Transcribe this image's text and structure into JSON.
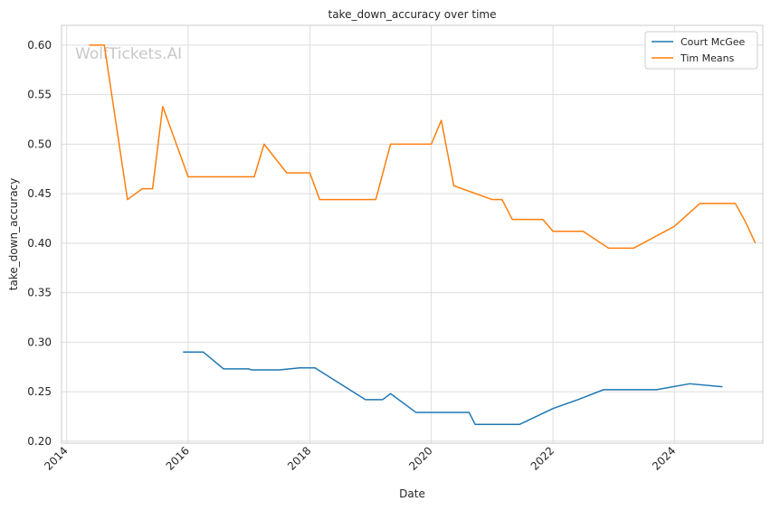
{
  "chart_data": {
    "type": "line",
    "title": "take_down_accuracy over time",
    "xlabel": "Date",
    "ylabel": "take_down_accuracy",
    "xlim": [
      "2013-12-01",
      "2025-06-15"
    ],
    "ylim": [
      0.198,
      0.62
    ],
    "x_ticks": [
      {
        "date": "2014-01-01",
        "label": "2014"
      },
      {
        "date": "2016-01-01",
        "label": "2016"
      },
      {
        "date": "2018-01-01",
        "label": "2018"
      },
      {
        "date": "2020-01-01",
        "label": "2020"
      },
      {
        "date": "2022-01-01",
        "label": "2022"
      },
      {
        "date": "2024-01-01",
        "label": "2024"
      }
    ],
    "y_ticks": [
      {
        "value": 0.2,
        "label": "0.20"
      },
      {
        "value": 0.25,
        "label": "0.25"
      },
      {
        "value": 0.3,
        "label": "0.30"
      },
      {
        "value": 0.35,
        "label": "0.35"
      },
      {
        "value": 0.4,
        "label": "0.40"
      },
      {
        "value": 0.45,
        "label": "0.45"
      },
      {
        "value": 0.5,
        "label": "0.50"
      },
      {
        "value": 0.55,
        "label": "0.55"
      },
      {
        "value": 0.6,
        "label": "0.60"
      }
    ],
    "grid": true,
    "legend_position": "top-right",
    "watermark": "WolfTickets.AI",
    "series": [
      {
        "name": "Court McGee",
        "color": "#1f77b4",
        "points": [
          [
            "2015-12-01",
            0.29
          ],
          [
            "2016-04-01",
            0.29
          ],
          [
            "2016-08-01",
            0.273
          ],
          [
            "2017-01-01",
            0.273
          ],
          [
            "2017-01-15",
            0.272
          ],
          [
            "2017-07-01",
            0.272
          ],
          [
            "2017-11-01",
            0.274
          ],
          [
            "2018-02-01",
            0.274
          ],
          [
            "2018-12-01",
            0.242
          ],
          [
            "2019-03-15",
            0.242
          ],
          [
            "2019-05-01",
            0.248
          ],
          [
            "2019-10-01",
            0.229
          ],
          [
            "2020-08-15",
            0.229
          ],
          [
            "2020-09-20",
            0.217
          ],
          [
            "2021-06-15",
            0.217
          ],
          [
            "2022-01-01",
            0.233
          ],
          [
            "2022-06-01",
            0.242
          ],
          [
            "2022-11-01",
            0.252
          ],
          [
            "2023-09-15",
            0.252
          ],
          [
            "2024-04-01",
            0.258
          ],
          [
            "2024-10-15",
            0.255
          ]
        ]
      },
      {
        "name": "Tim Means",
        "color": "#ff7f0e",
        "points": [
          [
            "2014-05-15",
            0.6
          ],
          [
            "2014-08-15",
            0.6
          ],
          [
            "2015-01-01",
            0.444
          ],
          [
            "2015-04-01",
            0.455
          ],
          [
            "2015-06-01",
            0.455
          ],
          [
            "2015-08-01",
            0.538
          ],
          [
            "2016-01-01",
            0.467
          ],
          [
            "2017-02-01",
            0.467
          ],
          [
            "2017-04-01",
            0.5
          ],
          [
            "2017-08-15",
            0.471
          ],
          [
            "2018-01-01",
            0.471
          ],
          [
            "2018-03-01",
            0.444
          ],
          [
            "2019-02-01",
            0.444
          ],
          [
            "2019-05-01",
            0.5
          ],
          [
            "2020-01-01",
            0.5
          ],
          [
            "2020-03-01",
            0.524
          ],
          [
            "2020-05-15",
            0.458
          ],
          [
            "2021-01-01",
            0.444
          ],
          [
            "2021-03-01",
            0.444
          ],
          [
            "2021-05-01",
            0.424
          ],
          [
            "2021-11-01",
            0.424
          ],
          [
            "2022-01-01",
            0.412
          ],
          [
            "2022-07-01",
            0.412
          ],
          [
            "2022-12-01",
            0.395
          ],
          [
            "2023-05-01",
            0.395
          ],
          [
            "2024-01-01",
            0.417
          ],
          [
            "2024-06-01",
            0.44
          ],
          [
            "2025-01-01",
            0.44
          ],
          [
            "2025-03-01",
            0.422
          ],
          [
            "2025-05-01",
            0.4
          ]
        ]
      }
    ]
  }
}
